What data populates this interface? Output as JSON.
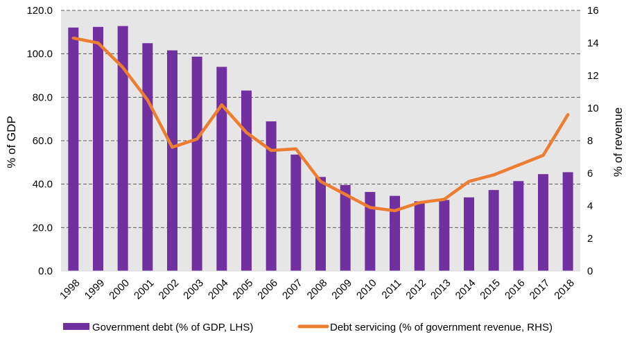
{
  "chart_data": {
    "type": "bar+line",
    "categories": [
      "1998",
      "1999",
      "2000",
      "2001",
      "2002",
      "2003",
      "2004",
      "2005",
      "2006",
      "2007",
      "2008",
      "2009",
      "2010",
      "2011",
      "2012",
      "2013",
      "2014",
      "2015",
      "2016",
      "2017",
      "2018"
    ],
    "series": [
      {
        "name": "Government debt (% of GDP, LHS)",
        "type": "bar",
        "axis": "left",
        "color": "#7030A0",
        "values": [
          112.1,
          112.4,
          112.8,
          104.9,
          101.6,
          98.7,
          94.0,
          83.1,
          68.9,
          53.6,
          43.3,
          39.6,
          36.4,
          34.6,
          32.1,
          32.7,
          33.9,
          37.3,
          41.4,
          44.6,
          45.5
        ]
      },
      {
        "name": "Debt servicing (% of government revenue, RHS)",
        "type": "line",
        "axis": "right",
        "color": "#ED7D31",
        "values": [
          14.3,
          14.0,
          12.5,
          10.5,
          7.6,
          8.1,
          10.2,
          8.5,
          7.4,
          7.5,
          5.5,
          4.7,
          3.9,
          3.7,
          4.2,
          4.4,
          5.5,
          5.9,
          6.5,
          7.1,
          9.6
        ]
      }
    ],
    "y_left": {
      "label": "% of GDP",
      "ylim": [
        0,
        120
      ],
      "ticks": [
        0,
        20,
        40,
        60,
        80,
        100,
        120
      ],
      "tick_labels": [
        "0.0",
        "20.0",
        "40.0",
        "60.0",
        "80.0",
        "100.0",
        "120.0"
      ]
    },
    "y_right": {
      "label": "% of revenue",
      "ylim": [
        0,
        16
      ],
      "ticks": [
        0,
        2,
        4,
        6,
        8,
        10,
        12,
        14,
        16
      ],
      "tick_labels": [
        "0",
        "2",
        "4",
        "6",
        "8",
        "10",
        "12",
        "14",
        "16"
      ]
    },
    "gridlines": "dashed horizontal",
    "plot_background": "#E7E6E6",
    "legend_position": "bottom"
  }
}
